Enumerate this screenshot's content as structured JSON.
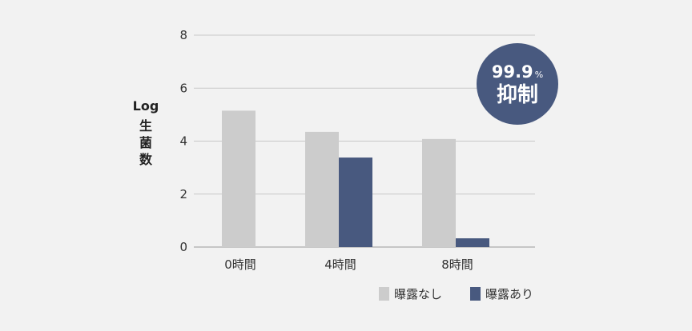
{
  "chart_data": {
    "type": "bar",
    "categories": [
      "0時間",
      "4時間",
      "8時間"
    ],
    "series": [
      {
        "name": "曝露なし",
        "values": [
          5.15,
          4.35,
          4.08
        ],
        "color": "#cccccc"
      },
      {
        "name": "曝露あり",
        "values": [
          null,
          3.38,
          0.33
        ],
        "color": "#48597f"
      }
    ],
    "ylabel": {
      "line1": "Log",
      "line2": "生",
      "line3": "菌",
      "line4": "数"
    },
    "ylim": [
      0,
      8
    ],
    "yticks": [
      0,
      2,
      4,
      6,
      8
    ],
    "grid": true,
    "legend_position": "bottom-right"
  },
  "badge": {
    "value": "99.9",
    "unit": "%",
    "text": "抑制",
    "color": "#48597f"
  },
  "colors": {
    "background": "#f2f2f2",
    "grid": "#c8c8c8",
    "axis": "#999999",
    "text": "#333333"
  }
}
